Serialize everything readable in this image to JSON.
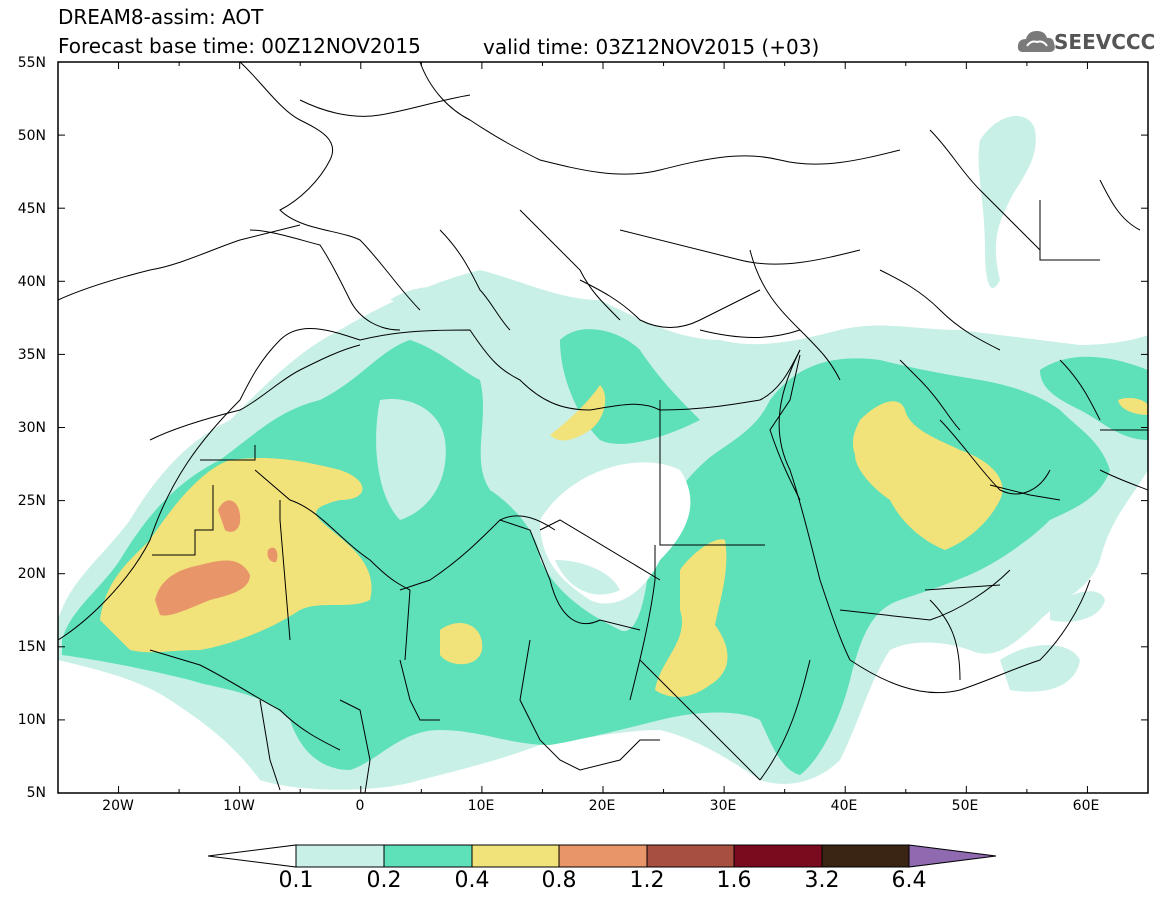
{
  "header": {
    "line1": "DREAM8-assim: AOT",
    "line2": "Forecast base time: 00Z12NOV2015",
    "valid": "valid time: 03Z12NOV2015 (+03)",
    "logo": "SEEVCCC",
    "logo_icon": "cloud-icon"
  },
  "map": {
    "lon_range": [
      -25,
      65
    ],
    "lat_range": [
      5,
      55
    ],
    "lat_labels": [
      "55N",
      "50N",
      "45N",
      "40N",
      "35N",
      "30N",
      "25N",
      "20N",
      "15N",
      "10N",
      "5N"
    ],
    "lon_labels": [
      "20W",
      "10W",
      "0",
      "10E",
      "20E",
      "30E",
      "40E",
      "50E",
      "60E"
    ],
    "fill_colors": {
      "c0_1": "#c8f0e6",
      "c0_2": "#5ee0b8",
      "c0_4": "#f2e27a",
      "c0_8": "#e8956a"
    }
  },
  "colorbar": {
    "labels": [
      "0.1",
      "0.2",
      "0.4",
      "0.8",
      "1.2",
      "1.6",
      "3.2",
      "6.4"
    ],
    "colors": [
      "#c8f0e6",
      "#5ee0b8",
      "#f2e27a",
      "#e8956a",
      "#a85040",
      "#7a0a1e",
      "#3a2414",
      "#8f6ab0"
    ],
    "under_color": "#ffffff"
  }
}
